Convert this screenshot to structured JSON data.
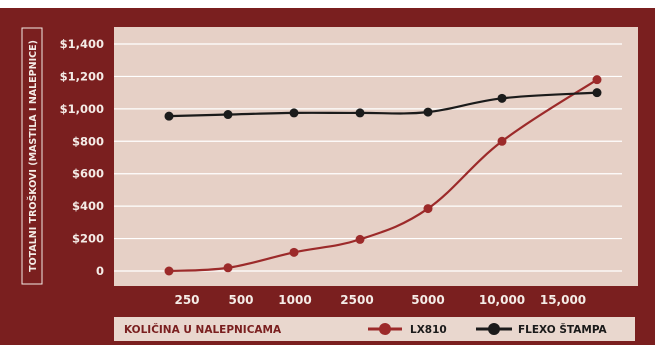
{
  "colors": {
    "frame": "#7a1f1f",
    "plot_bg": "#e6d0c6",
    "grid": "#ffffff",
    "lx810": "#9c2a2a",
    "flexo": "#1b1b1b",
    "label_text": "#f4ebe6",
    "legend_bg": "#e9d7ce"
  },
  "chart_data": {
    "type": "line",
    "title": "",
    "ylabel": "TOTALNI TROŠKOVI (MASTILA I NALEPNICE)",
    "xlabel": "KOLIČINA U NALEPNICAMA",
    "categories": [
      "250",
      "500",
      "1000",
      "2500",
      "5000",
      "10,000",
      "15,000"
    ],
    "ylim": [
      0,
      1400
    ],
    "yticks": [
      0,
      200,
      400,
      600,
      800,
      1000,
      1200,
      1400
    ],
    "ytick_labels": [
      "0",
      "$200",
      "$400",
      "$600",
      "$800",
      "$1,000",
      "$1,200",
      "$1,400"
    ],
    "grid": true,
    "legend_position": "bottom",
    "series": [
      {
        "name": "LX810",
        "values": [
          0,
          20,
          115,
          195,
          385,
          800,
          1180
        ],
        "color": "#9c2a2a"
      },
      {
        "name": "FLEXO ŠTAMPA",
        "values": [
          955,
          965,
          975,
          975,
          980,
          1065,
          1100
        ],
        "color": "#1b1b1b"
      }
    ]
  }
}
